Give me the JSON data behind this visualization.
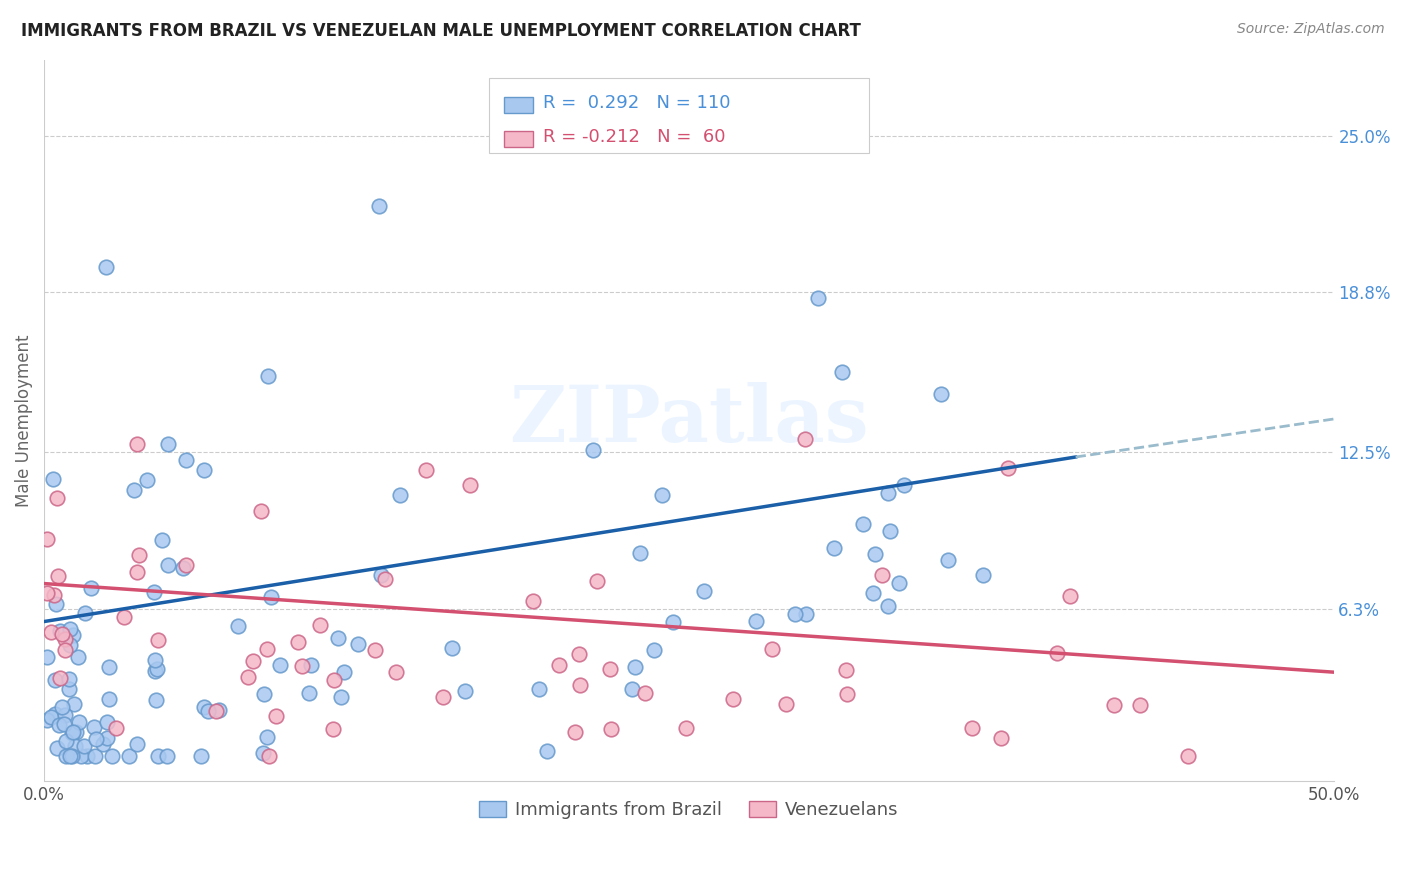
{
  "title": "IMMIGRANTS FROM BRAZIL VS VENEZUELAN MALE UNEMPLOYMENT CORRELATION CHART",
  "source": "Source: ZipAtlas.com",
  "ylabel": "Male Unemployment",
  "xlim": [
    0.0,
    0.5
  ],
  "ylim": [
    -0.005,
    0.28
  ],
  "yticks_right": [
    0.0,
    0.063,
    0.125,
    0.188,
    0.25
  ],
  "yticklabels_right": [
    "",
    "6.3%",
    "12.5%",
    "18.8%",
    "25.0%"
  ],
  "legend_label1": "Immigrants from Brazil",
  "legend_label2": "Venezuelans",
  "blue_color": "#a8c8f0",
  "blue_edge_color": "#6699cc",
  "pink_color": "#f5b8c8",
  "pink_edge_color": "#cc6688",
  "blue_line_color": "#1a5fa8",
  "pink_line_color": "#d45070",
  "dashed_line_color": "#99bbcc",
  "watermark": "ZIPatlas",
  "blue_R": 0.292,
  "blue_N": 110,
  "pink_R": -0.212,
  "pink_N": 60,
  "grid_color": "#cccccc",
  "spine_color": "#cccccc"
}
